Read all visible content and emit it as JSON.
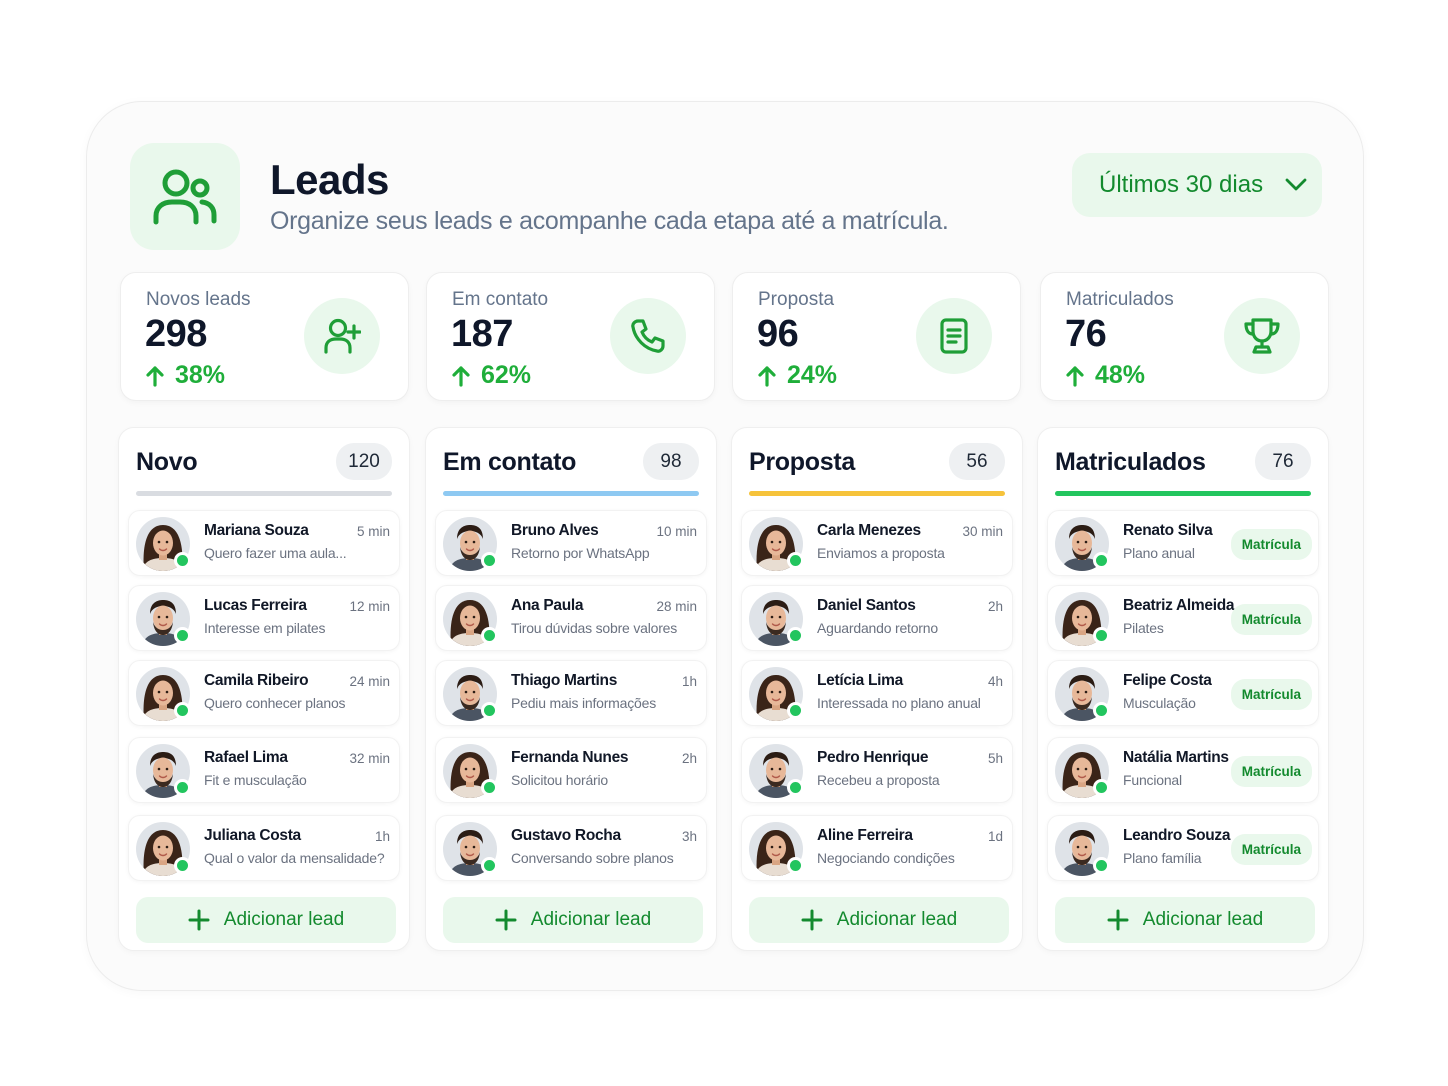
{
  "header": {
    "title": "Leads",
    "subtitle": "Organize seus leads e acompanhe cada etapa até a matrícula.",
    "icon": "users-icon",
    "range_label": "Últimos 30 dias"
  },
  "colors": {
    "accent": "#1fae3a",
    "accent_bg": "#e9f8ec"
  },
  "stats": [
    {
      "label": "Novos leads",
      "value": "298",
      "change": "38%",
      "icon": "user-plus-icon"
    },
    {
      "label": "Em contato",
      "value": "187",
      "change": "62%",
      "icon": "phone-icon"
    },
    {
      "label": "Proposta",
      "value": "96",
      "change": "24%",
      "icon": "document-icon"
    },
    {
      "label": "Matriculados",
      "value": "76",
      "change": "48%",
      "icon": "trophy-icon"
    }
  ],
  "columns": [
    {
      "title": "Novo",
      "count": "120",
      "bar_color": "#d9dce1",
      "add_label": "Adicionar lead",
      "cards": [
        {
          "name": "Mariana Souza",
          "note": "Quero fazer uma aula...",
          "time": "5 min",
          "gender": "f"
        },
        {
          "name": "Lucas Ferreira",
          "note": "Interesse em pilates",
          "time": "12 min",
          "gender": "m"
        },
        {
          "name": "Camila Ribeiro",
          "note": "Quero conhecer planos",
          "time": "24 min",
          "gender": "f"
        },
        {
          "name": "Rafael Lima",
          "note": "Fit e musculação",
          "time": "32 min",
          "gender": "m"
        },
        {
          "name": "Juliana Costa",
          "note": "Qual o valor da mensalidade?",
          "time": "1h",
          "gender": "f"
        }
      ]
    },
    {
      "title": "Em contato",
      "count": "98",
      "bar_color": "#8ec9f2",
      "add_label": "Adicionar lead",
      "cards": [
        {
          "name": "Bruno Alves",
          "note": "Retorno por WhatsApp",
          "time": "10 min",
          "gender": "m"
        },
        {
          "name": "Ana Paula",
          "note": "Tirou dúvidas sobre valores",
          "time": "28 min",
          "gender": "f"
        },
        {
          "name": "Thiago Martins",
          "note": "Pediu mais informações",
          "time": "1h",
          "gender": "m"
        },
        {
          "name": "Fernanda Nunes",
          "note": "Solicitou horário",
          "time": "2h",
          "gender": "f"
        },
        {
          "name": "Gustavo Rocha",
          "note": "Conversando sobre planos",
          "time": "3h",
          "gender": "m"
        }
      ]
    },
    {
      "title": "Proposta",
      "count": "56",
      "bar_color": "#f6c33b",
      "add_label": "Adicionar lead",
      "cards": [
        {
          "name": "Carla Menezes",
          "note": "Enviamos a proposta",
          "time": "30 min",
          "gender": "f"
        },
        {
          "name": "Daniel Santos",
          "note": "Aguardando retorno",
          "time": "2h",
          "gender": "m"
        },
        {
          "name": "Letícia Lima",
          "note": "Interessada no plano anual",
          "time": "4h",
          "gender": "f"
        },
        {
          "name": "Pedro Henrique",
          "note": "Recebeu a proposta",
          "time": "5h",
          "gender": "m"
        },
        {
          "name": "Aline Ferreira",
          "note": "Negociando condições",
          "time": "1d",
          "gender": "f"
        }
      ]
    },
    {
      "title": "Matriculados",
      "count": "76",
      "bar_color": "#22c55e",
      "add_label": "Adicionar lead",
      "cards": [
        {
          "name": "Renato Silva",
          "note": "Plano anual",
          "badge": "Matrícula",
          "gender": "m"
        },
        {
          "name": "Beatriz Almeida",
          "note": "Pilates",
          "badge": "Matrícula",
          "gender": "f"
        },
        {
          "name": "Felipe Costa",
          "note": "Musculação",
          "badge": "Matrícula",
          "gender": "m"
        },
        {
          "name": "Natália Martins",
          "note": "Funcional",
          "badge": "Matrícula",
          "gender": "f"
        },
        {
          "name": "Leandro Souza",
          "note": "Plano família",
          "badge": "Matrícula",
          "gender": "m"
        }
      ]
    }
  ]
}
